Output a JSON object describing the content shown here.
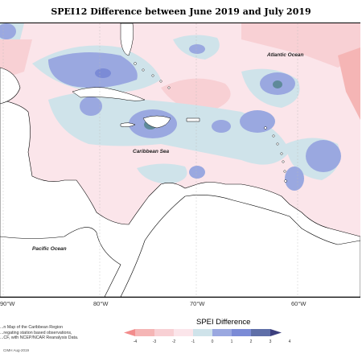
{
  "title": "SPEI12 Difference between June 2019 and July 2019",
  "ocean_labels": {
    "atlantic": "Atlantic Ocean",
    "caribbean": "Caribbean Sea",
    "pacific": "Pacific Ocean"
  },
  "longitude_labels": [
    "90°W",
    "80°W",
    "70°W",
    "60°W"
  ],
  "legend": {
    "title": "SPEI Difference",
    "ticks": [
      "-4",
      "-3",
      "-2",
      "-1",
      "0",
      "1",
      "2",
      "3",
      "4"
    ],
    "colors": [
      "#f28c8c",
      "#f5b5b5",
      "#f8d0d4",
      "#fbe5ea",
      "#cfe3ea",
      "#9aa8e0",
      "#7b8bd6",
      "#5f6fa8",
      "#3c3f7e"
    ]
  },
  "description": {
    "line1": "...n Map of the Caribbean Region",
    "line2": "...regating station based observations,",
    "line3": "...CF, with NCEP/NCAR Reanalysis Data."
  },
  "credit": "CIMH Aug-2019"
}
